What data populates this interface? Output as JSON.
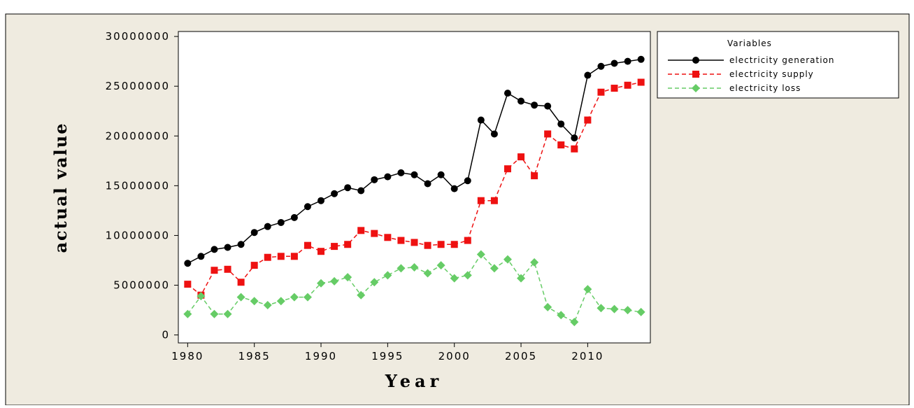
{
  "chart_data": {
    "type": "line",
    "xlabel": "Year",
    "ylabel": "actual value",
    "legend_title": "Variables",
    "legend": "right",
    "x": [
      1980,
      1981,
      1982,
      1983,
      1984,
      1985,
      1986,
      1987,
      1988,
      1989,
      1990,
      1991,
      1992,
      1993,
      1994,
      1995,
      1996,
      1997,
      1998,
      1999,
      2000,
      2001,
      2002,
      2003,
      2004,
      2005,
      2006,
      2007,
      2008,
      2009,
      2010,
      2011,
      2012,
      2013,
      2014
    ],
    "xlim": [
      1979.3,
      2014.7
    ],
    "xticks": [
      1980,
      1985,
      1990,
      1995,
      2000,
      2005,
      2010
    ],
    "ylim": [
      -800000,
      30500000
    ],
    "yticks": [
      0,
      5000000,
      10000000,
      15000000,
      20000000,
      25000000,
      30000000
    ],
    "series": [
      {
        "name": "electricity generation",
        "color": "#000000",
        "marker": "circle",
        "dash": "solid",
        "values": [
          7200000,
          7900000,
          8600000,
          8800000,
          9100000,
          10300000,
          10900000,
          11300000,
          11800000,
          12900000,
          13500000,
          14200000,
          14800000,
          14500000,
          15600000,
          15900000,
          16300000,
          16100000,
          15200000,
          16100000,
          14700000,
          15500000,
          21600000,
          20200000,
          24300000,
          23500000,
          23100000,
          23000000,
          21200000,
          19800000,
          26100000,
          27000000,
          27300000,
          27500000,
          27700000
        ]
      },
      {
        "name": "electricity supply",
        "color": "#ee1111",
        "marker": "square",
        "dash": "dashed",
        "values": [
          5100000,
          4000000,
          6500000,
          6600000,
          5300000,
          7000000,
          7800000,
          7900000,
          7900000,
          9000000,
          8400000,
          8900000,
          9100000,
          10500000,
          10200000,
          9800000,
          9500000,
          9300000,
          9000000,
          9100000,
          9100000,
          9500000,
          13500000,
          13500000,
          16700000,
          17900000,
          16000000,
          20200000,
          19100000,
          18700000,
          21600000,
          24400000,
          24800000,
          25100000,
          25400000
        ]
      },
      {
        "name": "electricity loss",
        "color": "#66cc66",
        "marker": "diamond",
        "dash": "dashed",
        "values": [
          2100000,
          3900000,
          2100000,
          2100000,
          3800000,
          3400000,
          3000000,
          3400000,
          3800000,
          3800000,
          5200000,
          5400000,
          5800000,
          4000000,
          5300000,
          6000000,
          6700000,
          6800000,
          6200000,
          7000000,
          5700000,
          6000000,
          8100000,
          6700000,
          7600000,
          5700000,
          7300000,
          2800000,
          2000000,
          1300000,
          4600000,
          2700000,
          2600000,
          2500000,
          2300000
        ]
      }
    ]
  }
}
